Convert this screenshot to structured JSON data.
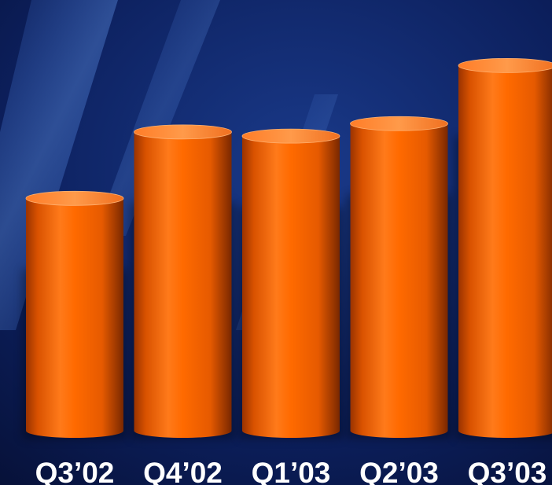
{
  "chart_data": {
    "type": "bar",
    "style": "3d-cylinder",
    "categories": [
      "Q3’02",
      "Q4’02",
      "Q1’03",
      "Q2’03",
      "Q3’03"
    ],
    "values": [
      56,
      72,
      71,
      74,
      88
    ],
    "ylim": [
      0,
      100
    ],
    "title": "",
    "xlabel": "",
    "ylabel": "",
    "grid": false,
    "legend": "none",
    "colors": {
      "bar": "#ff6a00",
      "bar_light": "#ff9a3c",
      "bar_dark": "#8a2d00",
      "top": "#ff8a35",
      "background": "#0b1a4d",
      "label": "#ffffff"
    }
  }
}
